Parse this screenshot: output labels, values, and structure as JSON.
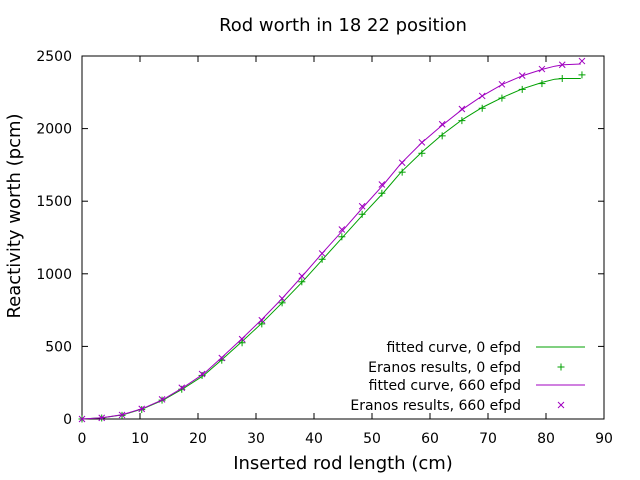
{
  "chart_data": {
    "type": "line",
    "title": "Rod worth in 18 22 position",
    "xlabel": "Inserted rod length (cm)",
    "ylabel": "Reactivity worth (pcm)",
    "xlim": [
      0,
      90
    ],
    "ylim": [
      0,
      2500
    ],
    "xticks": [
      0,
      10,
      20,
      30,
      40,
      50,
      60,
      70,
      80,
      90
    ],
    "yticks": [
      0,
      500,
      1000,
      1500,
      2000,
      2500
    ],
    "grid": false,
    "legend_position": "bottom-right",
    "series": [
      {
        "name": "fitted curve, 0 efpd",
        "style": "line",
        "color": "#00a000",
        "x": [
          0,
          3.5,
          7,
          10.5,
          14,
          17.5,
          21,
          24,
          27.5,
          31,
          34.5,
          38,
          41.5,
          45,
          48.5,
          52,
          55,
          58.5,
          62,
          65.5,
          69,
          72.5,
          76,
          79.5,
          81.5,
          83,
          86
        ],
        "y": [
          0,
          8,
          28,
          70,
          130,
          210,
          300,
          405,
          530,
          660,
          800,
          945,
          1100,
          1255,
          1410,
          1560,
          1700,
          1835,
          1955,
          2060,
          2145,
          2215,
          2275,
          2320,
          2340,
          2345,
          2345
        ]
      },
      {
        "name": "Eranos results, 0 efpd",
        "style": "marker-plus",
        "color": "#00a000",
        "x": [
          0,
          3.4,
          6.9,
          10.3,
          13.8,
          17.2,
          20.7,
          24.1,
          27.6,
          31,
          34.5,
          37.9,
          41.4,
          44.8,
          48.3,
          51.7,
          55.2,
          58.6,
          62.1,
          65.5,
          69,
          72.4,
          75.9,
          79.3,
          82.8,
          86.2
        ],
        "y": [
          0,
          7,
          25,
          65,
          130,
          205,
          300,
          405,
          525,
          655,
          800,
          945,
          1100,
          1255,
          1410,
          1555,
          1700,
          1830,
          1950,
          2055,
          2140,
          2210,
          2270,
          2310,
          2345,
          2370
        ]
      },
      {
        "name": "fitted curve, 660 efpd",
        "style": "line",
        "color": "#a000c0",
        "x": [
          0,
          3.5,
          7,
          10.5,
          14,
          17.5,
          21,
          24,
          27.5,
          31,
          34.5,
          38,
          41.5,
          45,
          48.5,
          52,
          55,
          58.5,
          62,
          65.5,
          69,
          72.5,
          76,
          79.5,
          81.5,
          83,
          86
        ],
        "y": [
          0,
          9,
          30,
          73,
          135,
          218,
          312,
          420,
          550,
          685,
          830,
          985,
          1145,
          1300,
          1460,
          1615,
          1760,
          1900,
          2020,
          2130,
          2225,
          2305,
          2365,
          2410,
          2430,
          2440,
          2445
        ]
      },
      {
        "name": "Eranos results, 660 efpd",
        "style": "marker-x",
        "color": "#a000c0",
        "x": [
          0,
          3.4,
          6.9,
          10.3,
          13.8,
          17.2,
          20.7,
          24.1,
          27.6,
          31,
          34.5,
          37.9,
          41.4,
          44.8,
          48.3,
          51.7,
          55.2,
          58.6,
          62.1,
          65.5,
          69,
          72.4,
          75.9,
          79.3,
          82.8,
          86.2
        ],
        "y": [
          0,
          8,
          28,
          70,
          135,
          215,
          310,
          420,
          550,
          680,
          830,
          985,
          1140,
          1305,
          1465,
          1615,
          1765,
          1905,
          2030,
          2135,
          2225,
          2305,
          2365,
          2410,
          2440,
          2465
        ]
      }
    ]
  }
}
